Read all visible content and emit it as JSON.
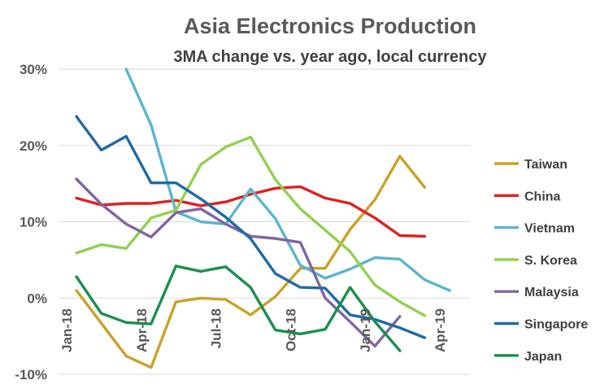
{
  "chart_data": {
    "type": "line",
    "title": "Asia Electronics Production",
    "subtitle": "3MA change vs. year ago, local currency",
    "xlabel": "",
    "ylabel": "",
    "ylim": [
      -10,
      30
    ],
    "yticks": [
      -10,
      0,
      10,
      20,
      30
    ],
    "ytick_labels": [
      "-10%",
      "0%",
      "10%",
      "20%",
      "30%"
    ],
    "x_labels": [
      {
        "label": "Jan-18",
        "index": 0
      },
      {
        "label": "Apr-18",
        "index": 3
      },
      {
        "label": "Jul-18",
        "index": 6
      },
      {
        "label": "Oct-18",
        "index": 9
      },
      {
        "label": "Jan-19",
        "index": 12
      },
      {
        "label": "Apr-19",
        "index": 15
      }
    ],
    "months": [
      "Jan-18",
      "Feb-18",
      "Mar-18",
      "Apr-18",
      "May-18",
      "Jun-18",
      "Jul-18",
      "Aug-18",
      "Sep-18",
      "Oct-18",
      "Nov-18",
      "Dec-18",
      "Jan-19",
      "Feb-19",
      "Mar-19",
      "Apr-19"
    ],
    "grid": "horizontal",
    "legend_position": "right",
    "series": [
      {
        "name": "Taiwan",
        "color": "#C9A227",
        "values": [
          1.0,
          -3.3,
          -7.6,
          -9.1,
          -0.5,
          0.0,
          -0.2,
          -2.2,
          0.2,
          3.9,
          3.9,
          9.0,
          12.9,
          18.6,
          14.5
        ]
      },
      {
        "name": "China",
        "color": "#E02020",
        "values": [
          13.1,
          12.2,
          12.4,
          12.4,
          12.8,
          12.1,
          12.6,
          13.6,
          14.4,
          14.6,
          13.1,
          12.4,
          10.5,
          8.2,
          8.1
        ]
      },
      {
        "name": "Vietnam",
        "color": "#5BB5CF",
        "values": [
          null,
          null,
          30.0,
          22.7,
          11.3,
          10.0,
          9.7,
          14.3,
          10.4,
          4.3,
          2.6,
          3.8,
          5.3,
          5.1,
          2.4,
          1.0
        ]
      },
      {
        "name": "S. Korea",
        "color": "#92D050",
        "values": [
          5.9,
          7.0,
          6.5,
          10.5,
          11.5,
          17.5,
          19.8,
          21.1,
          15.5,
          11.7,
          8.9,
          6.1,
          1.7,
          -0.5,
          -2.3
        ]
      },
      {
        "name": "Malaysia",
        "color": "#8064A2",
        "values": [
          15.6,
          12.3,
          9.7,
          8.0,
          11.2,
          11.7,
          9.7,
          8.1,
          7.8,
          7.3,
          0.0,
          -3.1,
          -6.3,
          -2.4
        ]
      },
      {
        "name": "Singapore",
        "color": "#1F6AA5",
        "values": [
          23.8,
          19.4,
          21.2,
          15.1,
          15.1,
          13.0,
          10.6,
          7.8,
          3.2,
          1.4,
          1.3,
          -2.2,
          -2.8,
          -3.9,
          -5.2
        ]
      },
      {
        "name": "Japan",
        "color": "#1A8F4E",
        "values": [
          2.8,
          -2.0,
          -3.2,
          -3.4,
          4.2,
          3.5,
          4.1,
          1.4,
          -4.2,
          -4.7,
          -4.1,
          1.4,
          -3.1,
          -6.9
        ]
      }
    ]
  }
}
